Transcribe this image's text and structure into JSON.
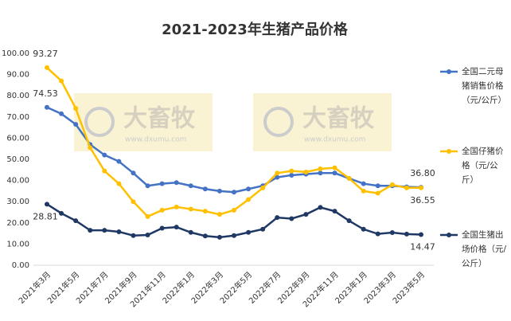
{
  "chart_data": {
    "type": "line",
    "title": "2021-2023年生猪产品价格",
    "watermarks": [
      {
        "brand": "大畜牧",
        "url": "www.dxumu.com"
      },
      {
        "brand": "大畜牧",
        "url": "www.dxumu.com"
      }
    ],
    "categories": [
      "2021年3月",
      null,
      "2021年5月",
      null,
      "2021年7月",
      null,
      "2021年9月",
      null,
      "2021年11月",
      null,
      "2022年1月",
      null,
      "2022年3月",
      null,
      "2022年5月",
      null,
      "2022年7月",
      null,
      "2022年9月",
      null,
      "2022年11月",
      null,
      "2023年1月",
      null,
      "2023年3月",
      null,
      "2023年5月"
    ],
    "series": [
      {
        "name": "全国二元母猪销售价格（元/公斤）",
        "color": "#4472c4",
        "values": [
          74.53,
          71.5,
          66.5,
          57,
          52,
          49,
          43.5,
          37.5,
          38.5,
          39,
          37.5,
          36,
          35,
          34.5,
          36,
          37.5,
          41.5,
          42.5,
          43,
          43.5,
          43.5,
          41,
          38.5,
          37.5,
          37.5,
          37,
          36.8
        ],
        "value_labels": [
          "74.53",
          null,
          null,
          null,
          null,
          null,
          null,
          null,
          null,
          null,
          null,
          null,
          null,
          null,
          null,
          null,
          null,
          null,
          null,
          null,
          null,
          null,
          null,
          null,
          null,
          null,
          "36.80"
        ]
      },
      {
        "name": "全国仔猪价格（元/公斤）",
        "color": "#ffc000",
        "values": [
          93.27,
          87,
          74,
          55.5,
          44.5,
          38.5,
          30,
          23,
          26,
          27.5,
          26.5,
          25.5,
          24,
          26,
          31,
          36.5,
          43.5,
          44.5,
          44,
          45.5,
          46,
          41,
          35,
          34,
          38,
          36.5,
          36.55
        ],
        "value_labels": [
          "93.27",
          null,
          null,
          null,
          null,
          null,
          null,
          null,
          null,
          null,
          null,
          null,
          null,
          null,
          null,
          null,
          null,
          null,
          null,
          null,
          null,
          null,
          null,
          null,
          null,
          null,
          "36.55"
        ]
      },
      {
        "name": "全国生猪出场价格（元/公斤）",
        "color": "#1f3864",
        "values": [
          28.81,
          24.5,
          21,
          16.5,
          16.5,
          15.8,
          14,
          14.3,
          17.5,
          18,
          15.5,
          13.8,
          13.2,
          14,
          15.5,
          17,
          22.5,
          22,
          24,
          27.3,
          25.5,
          21,
          17,
          14.8,
          15.4,
          14.7,
          14.47
        ],
        "value_labels": [
          "28.81",
          null,
          null,
          null,
          null,
          null,
          null,
          null,
          null,
          null,
          null,
          null,
          null,
          null,
          null,
          null,
          null,
          null,
          null,
          null,
          null,
          null,
          null,
          null,
          null,
          null,
          "14.47"
        ]
      }
    ],
    "ylim": [
      0,
      100
    ],
    "yticks": [
      {
        "value": 0,
        "label": "0.00"
      },
      {
        "value": 10,
        "label": "10.00"
      },
      {
        "value": 20,
        "label": "20.00"
      },
      {
        "value": 30,
        "label": "30.00"
      },
      {
        "value": 40,
        "label": "40.00"
      },
      {
        "value": 50,
        "label": "50.00"
      },
      {
        "value": 60,
        "label": "60.00"
      },
      {
        "value": 70,
        "label": "70.00"
      },
      {
        "value": 80,
        "label": "80.00"
      },
      {
        "value": 90,
        "label": "90.00"
      },
      {
        "value": 100,
        "label": "100.00"
      }
    ],
    "grid": false,
    "legend": "right"
  }
}
